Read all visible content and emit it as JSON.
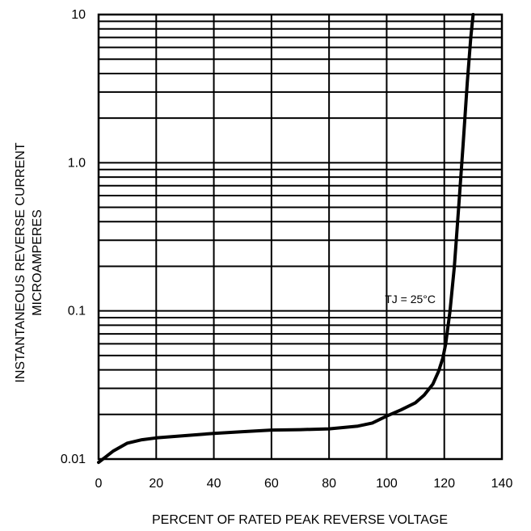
{
  "chart_data": {
    "type": "line",
    "title": "",
    "xlabel": "PERCENT OF RATED PEAK REVERSE VOLTAGE",
    "ylabel_lines": [
      "INSTANTANEOUS REVERSE CURRENT",
      "MICROAMPERES"
    ],
    "xlim": [
      0,
      140
    ],
    "ylim": [
      0.01,
      10
    ],
    "y_scale": "log",
    "grid": true,
    "x_ticks": [
      0,
      20,
      40,
      60,
      80,
      100,
      120,
      140
    ],
    "x_tick_labels": [
      "0",
      "20",
      "40",
      "60",
      "80",
      "100",
      "120",
      "140"
    ],
    "y_ticks": [
      0.01,
      0.1,
      1,
      10
    ],
    "y_tick_labels": [
      "0.01",
      "0.1",
      "1.0",
      "10"
    ],
    "annotation": {
      "text": "TJ = 25°C",
      "x": 117,
      "y": 0.12
    },
    "series": [
      {
        "x": [
          0,
          5,
          10,
          15,
          20,
          30,
          40,
          50,
          60,
          70,
          80,
          90,
          95,
          100,
          105,
          110,
          113,
          116,
          118,
          119.5,
          120.5,
          122,
          123.5,
          125,
          126.5,
          128,
          129.2,
          130
        ],
        "y": [
          0.0095,
          0.0113,
          0.0128,
          0.0135,
          0.0139,
          0.0144,
          0.0149,
          0.0153,
          0.0157,
          0.0158,
          0.016,
          0.0167,
          0.0175,
          0.0195,
          0.0215,
          0.024,
          0.027,
          0.032,
          0.039,
          0.048,
          0.06,
          0.1,
          0.2,
          0.5,
          1.3,
          3.5,
          7.0,
          10
        ]
      }
    ]
  }
}
